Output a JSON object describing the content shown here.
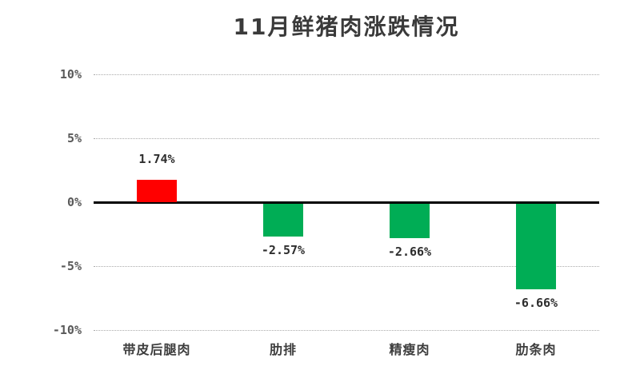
{
  "title": "11月鲜猪肉涨跌情况",
  "chart_data": {
    "type": "bar",
    "title": "11月鲜猪肉涨跌情况",
    "categories": [
      "带皮后腿肉",
      "肋排",
      "精瘦肉",
      "肋条肉"
    ],
    "values": [
      1.74,
      -2.57,
      -2.66,
      -6.66
    ],
    "labels": [
      "1.74%",
      "-2.57%",
      "-2.66%",
      "-6.66%"
    ],
    "xlabel": "",
    "ylabel": "",
    "ylim": [
      -10,
      10
    ],
    "yticks": [
      "10%",
      "5%",
      "0%",
      "-5%",
      "-10%"
    ],
    "grid": "horizontal-dotted",
    "legend": "none",
    "colors": {
      "positive": "#ff0000",
      "negative": "#00ad55",
      "axis": "#000000",
      "gridline": "#ababab",
      "tick_text": "#595959",
      "label_text": "#2e2e2e",
      "title_text": "#3a3a3a"
    }
  }
}
